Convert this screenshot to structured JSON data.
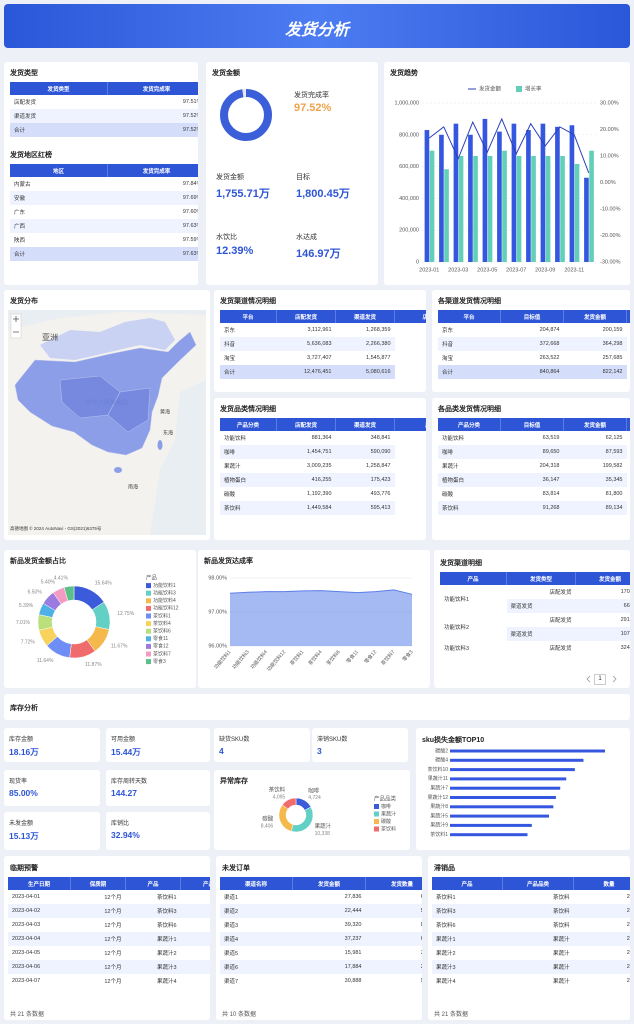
{
  "header": {
    "title": "发货分析"
  },
  "ship_type": {
    "title": "发货类型",
    "header": [
      "发货类型",
      "发货完成率"
    ],
    "rows": [
      [
        "店配发货",
        "97.51%"
      ],
      [
        "渠道发货",
        "97.52%"
      ],
      [
        "合计",
        "97.52%"
      ]
    ]
  },
  "region_rank": {
    "title": "发货地区红榜",
    "header": [
      "地区",
      "发货完成率"
    ],
    "rows": [
      [
        "内蒙古",
        "97.84%"
      ],
      [
        "安徽",
        "97.69%"
      ],
      [
        "广东",
        "97.60%"
      ],
      [
        "广西",
        "97.63%"
      ],
      [
        "陕西",
        "97.59%"
      ],
      [
        "合计",
        "97.63%"
      ]
    ]
  },
  "ship_amount": {
    "title": "发货金额",
    "kpis": [
      {
        "label": "发货金额",
        "value": "1,755.71万"
      },
      {
        "label": "目标",
        "value": "1,800.45万"
      },
      {
        "label": "水饮比",
        "value": "12.39%"
      },
      {
        "label": "水达成",
        "value": "146.97万"
      }
    ]
  },
  "distribution": {
    "title": "发货分布",
    "labels": [
      "亚洲",
      "中华人民共和国",
      "黄海",
      "东海",
      "南海"
    ],
    "attribution": "高德地图 © 2024 AutoNavi - GS(2021)6375号"
  },
  "channel_detail": {
    "title": "发货渠道情况明细",
    "header": [
      "平台",
      "店配发货",
      "渠道发货",
      "店配"
    ],
    "rows": [
      [
        "京东",
        "3,112,961",
        "1,268,359"
      ],
      [
        "抖音",
        "5,636,083",
        "2,266,380"
      ],
      [
        "淘宝",
        "3,727,407",
        "1,545,877"
      ],
      [
        "合计",
        "12,476,451",
        "5,080,616"
      ]
    ]
  },
  "channel_target": {
    "title": "各渠道发货情况明细",
    "header": [
      "平台",
      "目标值",
      "发货金额",
      "发"
    ],
    "rows": [
      [
        "京东",
        "204,874",
        "200,159"
      ],
      [
        "抖音",
        "372,668",
        "364,298"
      ],
      [
        "淘宝",
        "263,522",
        "257,685"
      ],
      [
        "合计",
        "840,864",
        "822,142"
      ]
    ]
  },
  "category_detail": {
    "title": "发货品类情况明细",
    "header": [
      "产品分类",
      "店配发货",
      "渠道发货",
      "店"
    ],
    "rows": [
      [
        "功能饮料",
        "881,364",
        "348,841"
      ],
      [
        "咖啡",
        "1,454,751",
        "590,090"
      ],
      [
        "果蔬汁",
        "3,009,235",
        "1,258,847"
      ],
      [
        "植物蛋白",
        "416,255",
        "175,423"
      ],
      [
        "碳酸",
        "1,192,390",
        "493,776"
      ],
      [
        "茶饮料",
        "1,449,584",
        "595,413"
      ]
    ]
  },
  "category_target": {
    "title": "各品类发货情况明细",
    "header": [
      "产品分类",
      "目标值",
      "发货金额",
      "发"
    ],
    "rows": [
      [
        "功能饮料",
        "63,519",
        "62,125"
      ],
      [
        "咖啡",
        "89,650",
        "87,593"
      ],
      [
        "果蔬汁",
        "204,318",
        "199,582"
      ],
      [
        "植物蛋白",
        "36,147",
        "35,345"
      ],
      [
        "碳酸",
        "83,814",
        "81,800"
      ],
      [
        "茶饮料",
        "91,268",
        "89,134"
      ]
    ]
  },
  "new_channel_detail": {
    "title": "发货渠道明细",
    "header": [
      "产品",
      "发货类型",
      "发货金额"
    ],
    "rows": [
      [
        "功能饮料1",
        "店配发货",
        "170,040"
      ],
      [
        null,
        "渠道发货",
        "66,040"
      ],
      [
        "功能饮料2",
        "店配发货",
        "291,177"
      ],
      [
        null,
        "渠道发货",
        "107,235"
      ],
      [
        "功能饮料3",
        "店配发货",
        "324,230"
      ]
    ],
    "page": "1"
  },
  "inventory": {
    "title": "库存分析",
    "kpis": [
      {
        "label": "库存金额",
        "value": "18.16万"
      },
      {
        "label": "可用金额",
        "value": "15.44万"
      },
      {
        "label": "缺货SKU数",
        "value": "4"
      },
      {
        "label": "滞销SKU数",
        "value": "3"
      },
      {
        "label": "现货率",
        "value": "85.00%"
      },
      {
        "label": "库存周转天数",
        "value": "144.27"
      },
      {
        "label": "未发金额",
        "value": "15.13万"
      },
      {
        "label": "库销比",
        "value": "32.94%"
      }
    ]
  },
  "expiry": {
    "title": "临期预警",
    "header": [
      "生产日期",
      "保质期",
      "产品",
      "产品分类"
    ],
    "rows": [
      [
        "2023-04-01",
        "12个月",
        "茶饮料1",
        "茶饮料"
      ],
      [
        "2023-04-02",
        "12个月",
        "茶饮料3",
        "茶饮料"
      ],
      [
        "2023-04-03",
        "12个月",
        "茶饮料6",
        "茶饮料"
      ],
      [
        "2023-04-04",
        "12个月",
        "果蔬汁1",
        "果蔬汁"
      ],
      [
        "2023-04-05",
        "12个月",
        "果蔬汁2",
        "果蔬汁"
      ],
      [
        "2023-04-06",
        "12个月",
        "果蔬汁3",
        "果蔬汁"
      ],
      [
        "2023-04-07",
        "12个月",
        "果蔬汁4",
        "果蔬汁"
      ]
    ],
    "footer": "共 21 条数据"
  },
  "unshipped": {
    "title": "未发订单",
    "header": [
      "渠道名称",
      "发货金额",
      "发货数量"
    ],
    "rows": [
      [
        "渠道1",
        "27,836",
        "6,250"
      ],
      [
        "渠道2",
        "22,444",
        "5,786"
      ],
      [
        "渠道3",
        "39,320",
        "8,690"
      ],
      [
        "渠道4",
        "37,237",
        "6,686"
      ],
      [
        "渠道5",
        "15,981",
        "3,948"
      ],
      [
        "渠道6",
        "17,884",
        "2,731"
      ],
      [
        "渠道7",
        "30,888",
        "9,223"
      ]
    ],
    "footer": "共 10 条数据"
  },
  "slow_moving": {
    "title": "滞销品",
    "header": [
      "产品",
      "产品品类",
      "数量"
    ],
    "rows": [
      [
        "茶饮料1",
        "茶饮料",
        "2,187"
      ],
      [
        "茶饮料3",
        "茶饮料",
        "2,658"
      ],
      [
        "茶饮料6",
        "茶饮料",
        "2,429"
      ],
      [
        "果蔬汁1",
        "果蔬汁",
        "2,287"
      ],
      [
        "果蔬汁2",
        "果蔬汁",
        "2,288"
      ],
      [
        "果蔬汁3",
        "果蔬汁",
        "2,836"
      ],
      [
        "果蔬汁4",
        "果蔬汁",
        "2,710"
      ]
    ],
    "footer": "共 21 条数据"
  },
  "chart_data": [
    {
      "type": "ring",
      "title": "发货完成率",
      "values": [
        97.52
      ],
      "value_labels": [
        "97.52%"
      ],
      "ylim": [
        0,
        100
      ],
      "color": "#3a5fd9"
    },
    {
      "type": "combo",
      "title": "发货趋势",
      "categories": [
        "2023-01",
        null,
        "2023-03",
        null,
        "2023-05",
        null,
        "2023-07",
        null,
        "2023-09",
        null,
        "2023-11",
        null
      ],
      "series": [
        {
          "name": "发货金额",
          "type": "line",
          "color": "#2b3fb8",
          "values": [
            780000,
            850000,
            650000,
            880000,
            690000,
            900000,
            680000,
            870000,
            730000,
            850000,
            800000,
            560000
          ]
        },
        {
          "name": "增长率",
          "type": "bar",
          "axis": "y2",
          "color": "#62d0b8",
          "values": [
            12,
            5,
            10,
            10,
            10,
            12,
            10,
            10,
            10,
            10,
            7,
            12
          ]
        },
        {
          "type": "bar",
          "color": "#3557e0",
          "values": [
            830000,
            800000,
            870000,
            800000,
            900000,
            820000,
            870000,
            830000,
            870000,
            850000,
            860000,
            530000
          ]
        }
      ],
      "ylim": [
        0,
        1000000
      ],
      "yticks": [
        0,
        {
          "value": 200000,
          "label": "200,000"
        },
        {
          "value": 400000,
          "label": "400,000"
        },
        {
          "value": 600000,
          "label": "600,000"
        },
        {
          "value": 800000,
          "label": "800,000"
        },
        {
          "value": 1000000,
          "label": "1,000,000"
        }
      ],
      "y2lim": [
        -30,
        30
      ],
      "y2ticks": [
        {
          "value": -30,
          "label": "-30.00%"
        },
        {
          "value": -20,
          "label": "-20.00%"
        },
        {
          "value": -10,
          "label": "-10.00%"
        },
        {
          "value": 0,
          "label": "0.00%"
        },
        {
          "value": 10,
          "label": "10.00%"
        },
        {
          "value": 20,
          "label": "20.00%"
        },
        {
          "value": 30,
          "label": "30.00%"
        }
      ],
      "grid": true
    },
    {
      "type": "donut",
      "title": "新品发货金额占比",
      "legend_title": "产品",
      "categories": [
        "功能饮料1",
        "功能饮料3",
        "功能饮料4",
        "功能饮料12",
        "茶饮料1",
        "茶饮料4",
        "茶饮料6",
        "零食11",
        "零食12",
        "茶饮料7",
        "零食3"
      ],
      "values": [
        15.64,
        12.75,
        11.67,
        11.87,
        11.64,
        7.72,
        7.01,
        5.39,
        6.5,
        5.4,
        4.41
      ],
      "value_labels": [
        "15.64%",
        "12.75%",
        "11.67%",
        "11.87%",
        "11.64%",
        "7.72%",
        "7.01%",
        "5.39%",
        "6.50%",
        "5.40%",
        "4.41%"
      ],
      "colors": [
        "#3b5bdb",
        "#62d0c4",
        "#f5b84a",
        "#f06b6b",
        "#6e8ef5",
        "#f7d25c",
        "#b9e07a",
        "#4fb0e8",
        "#9b7be0",
        "#f49bc2",
        "#5bbf8a"
      ]
    },
    {
      "type": "area",
      "title": "新品发货达成率",
      "categories": [
        "功能饮料1",
        "功能饮料3",
        "功能饮料4",
        "功能饮料12",
        "茶饮料1",
        "茶饮料4",
        "茶饮料6",
        "零食11",
        "零食12",
        "茶饮料7",
        "零食3"
      ],
      "values": [
        97.55,
        97.58,
        97.6,
        97.6,
        97.62,
        97.63,
        97.6,
        97.57,
        97.6,
        97.65,
        97.52
      ],
      "ylim": [
        96,
        98
      ],
      "yticks": [
        {
          "value": 96,
          "label": "96.00%"
        },
        {
          "value": 97,
          "label": "97.00%"
        },
        {
          "value": 98,
          "label": "98.00%"
        }
      ],
      "color": "#5b7fe8",
      "grid": true
    },
    {
      "type": "donut",
      "title": "异常库存",
      "legend_title": "产品品类",
      "categories": [
        "咖啡",
        "果蔬汁",
        "碳酸",
        "茶饮料"
      ],
      "values": [
        4724,
        10338,
        8406,
        4095
      ],
      "value_labels": [
        "4,724",
        "10,338",
        "8,406",
        "4,095"
      ],
      "colors": [
        "#3b5bdb",
        "#62d0c4",
        "#f5b84a",
        "#f06b6b"
      ]
    },
    {
      "type": "hbar",
      "title": "sku损失金额TOP10",
      "categories": [
        "碳酸2",
        "碳酸4",
        "茶饮料10",
        "果蔬汁11",
        "果蔬汁7",
        "果蔬汁12",
        "果蔬汁8",
        "果蔬汁5",
        "果蔬汁9",
        "茶饮料1"
      ],
      "values": [
        180,
        155,
        145,
        135,
        128,
        123,
        120,
        115,
        95,
        90
      ],
      "color": "#3557e0"
    }
  ]
}
